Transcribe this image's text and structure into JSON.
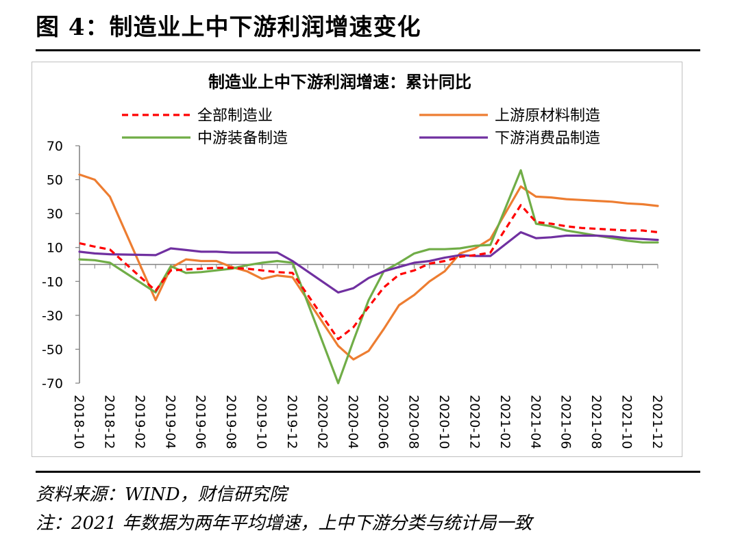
{
  "figure": {
    "title": "图 4：制造业上中下游利润增速变化"
  },
  "source_note": "资料来源：WIND，财信研究院",
  "remark_note": "注：2021 年数据为两年平均增速，上中下游分类与统计局一致",
  "colors": {
    "all": "#ff0000",
    "upstream": "#ed7d31",
    "midstream": "#70ad47",
    "downstream": "#7030a0"
  },
  "chart_data": {
    "type": "line",
    "title": "制造业上中下游利润增速：累计同比",
    "xlabel": "",
    "ylabel": "",
    "ylim": [
      -70,
      70
    ],
    "yticks": [
      70,
      50,
      30,
      10,
      -10,
      -30,
      -50,
      -70
    ],
    "legend_position": "top",
    "x": [
      "2018-10",
      "2018-11",
      "2018-12",
      "2019-01",
      "2019-02",
      "2019-03",
      "2019-04",
      "2019-05",
      "2019-06",
      "2019-07",
      "2019-08",
      "2019-09",
      "2019-10",
      "2019-11",
      "2019-12",
      "2020-01",
      "2020-02",
      "2020-03",
      "2020-04",
      "2020-05",
      "2020-06",
      "2020-07",
      "2020-08",
      "2020-09",
      "2020-10",
      "2020-11",
      "2020-12",
      "2021-01",
      "2021-02",
      "2021-03",
      "2021-04",
      "2021-05",
      "2021-06",
      "2021-07",
      "2021-08",
      "2021-09",
      "2021-10",
      "2021-11",
      "2021-12"
    ],
    "xtick_labels": [
      "2018-10",
      "2018-12",
      "2019-02",
      "2019-04",
      "2019-06",
      "2019-08",
      "2019-10",
      "2019-12",
      "2020-02",
      "2020-04",
      "2020-06",
      "2020-08",
      "2020-10",
      "2020-12",
      "2021-02",
      "2021-04",
      "2021-06",
      "2021-08",
      "2021-10",
      "2021-12"
    ],
    "series": [
      {
        "name": "全部制造业",
        "key": "all",
        "style": "dashed",
        "values": [
          12.5,
          10.5,
          8.8,
          null,
          null,
          -15.5,
          -3.5,
          -3.0,
          -2.5,
          -2.0,
          -2.0,
          -2.5,
          -3.5,
          -4.5,
          -5.0,
          null,
          null,
          -44.0,
          -37.0,
          -25.0,
          -13.5,
          -6.0,
          -3.5,
          0.5,
          2.0,
          4.5,
          5.5,
          7.0,
          null,
          35.0,
          25.0,
          24.0,
          22.5,
          21.5,
          21.0,
          20.5,
          20.0,
          20.0,
          19.0
        ]
      },
      {
        "name": "上游原材料制造",
        "key": "upstream",
        "style": "solid",
        "values": [
          53.0,
          50.0,
          40.0,
          null,
          null,
          -21.0,
          -2.0,
          3.0,
          2.0,
          2.0,
          -1.5,
          -4.0,
          -8.5,
          -6.5,
          -7.5,
          null,
          null,
          -48.0,
          -56.0,
          -51.0,
          -38.0,
          -24.0,
          -18.0,
          -10.0,
          -4.0,
          6.5,
          9.5,
          15.0,
          null,
          46.0,
          40.0,
          39.5,
          38.5,
          38.0,
          37.5,
          37.0,
          36.0,
          35.5,
          34.5
        ]
      },
      {
        "name": "中游装备制造",
        "key": "midstream",
        "style": "solid",
        "values": [
          3.0,
          2.5,
          1.0,
          null,
          null,
          -16.5,
          -1.0,
          -5.0,
          -4.5,
          -3.5,
          -2.5,
          -0.5,
          1.0,
          2.0,
          1.0,
          null,
          null,
          -70.0,
          -45.0,
          -21.0,
          -4.0,
          1.0,
          6.5,
          9.0,
          9.0,
          9.5,
          11.0,
          11.5,
          null,
          55.5,
          24.0,
          22.5,
          20.0,
          18.5,
          17.0,
          15.5,
          14.0,
          13.0,
          13.0
        ]
      },
      {
        "name": "下游消费品制造",
        "key": "downstream",
        "style": "solid",
        "values": [
          7.5,
          6.5,
          6.0,
          null,
          null,
          5.5,
          9.5,
          8.5,
          7.5,
          7.5,
          7.0,
          7.0,
          7.0,
          7.0,
          2.0,
          null,
          null,
          -16.5,
          -14.0,
          -8.0,
          -4.0,
          -1.5,
          1.0,
          2.0,
          4.0,
          5.5,
          5.0,
          5.0,
          null,
          19.0,
          15.5,
          16.0,
          17.0,
          17.0,
          17.0,
          16.5,
          15.5,
          15.0,
          14.5
        ]
      }
    ]
  }
}
